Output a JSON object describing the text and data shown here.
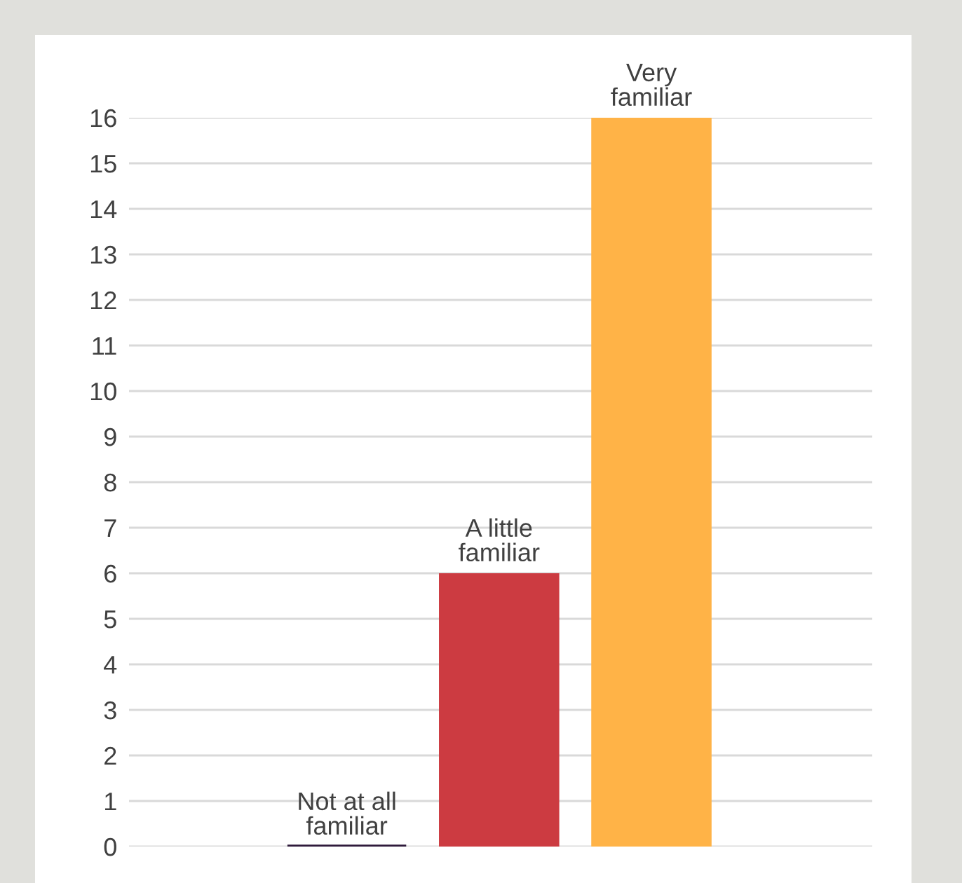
{
  "chart_data": {
    "type": "bar",
    "categories": [
      "Not at all\nfamiliar",
      "A little\nfamiliar",
      "Very\nfamiliar"
    ],
    "values": [
      0,
      6,
      16
    ],
    "colors": [
      "#2e1a3a",
      "#cc3b41",
      "#ffb347"
    ],
    "ylim": [
      0,
      16
    ],
    "yticks": [
      0,
      1,
      2,
      3,
      4,
      5,
      6,
      7,
      8,
      9,
      10,
      11,
      12,
      13,
      14,
      15,
      16
    ],
    "grid": "y",
    "legend": false
  }
}
